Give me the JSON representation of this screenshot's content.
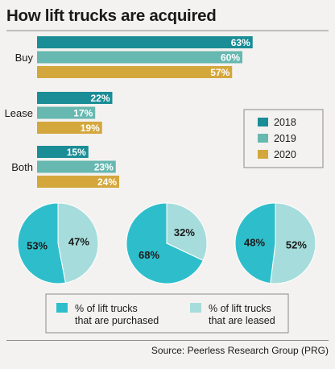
{
  "title": "How lift trucks are acquired",
  "source": "Source: Peerless Research Group (PRG)",
  "chart_data": [
    {
      "type": "bar",
      "orientation": "horizontal",
      "categories": [
        "Buy",
        "Lease",
        "Both"
      ],
      "series": [
        {
          "name": "2018",
          "color": "#1a8d96",
          "values": [
            63,
            22,
            15
          ]
        },
        {
          "name": "2019",
          "color": "#66b8b0",
          "values": [
            60,
            17,
            23
          ]
        },
        {
          "name": "2020",
          "color": "#d4a73c",
          "values": [
            57,
            19,
            24
          ]
        }
      ],
      "value_suffix": "%",
      "legend_position": "right",
      "xlim": [
        0,
        70
      ]
    },
    {
      "type": "pie",
      "charts": [
        {
          "series_values": [
            53,
            47
          ]
        },
        {
          "series_values": [
            68,
            32
          ]
        },
        {
          "series_values": [
            48,
            52
          ]
        }
      ],
      "slice_labels_suffix": "%",
      "series": [
        {
          "name": "% of lift trucks that are purchased",
          "color": "#2ebecb"
        },
        {
          "name": "% of lift trucks that are leased",
          "color": "#a6dddc"
        }
      ],
      "legend_lines": [
        [
          "% of lift trucks",
          "that are purchased"
        ],
        [
          "% of lift trucks",
          "that are leased"
        ]
      ]
    }
  ]
}
